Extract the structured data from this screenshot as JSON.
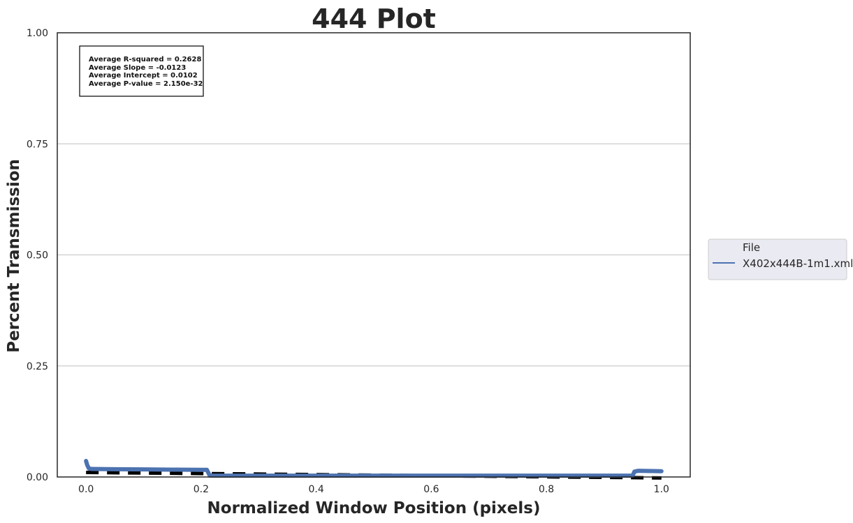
{
  "chart_data": {
    "type": "line",
    "title": "444 Plot",
    "xlabel": "Normalized Window Position (pixels)",
    "ylabel": "Percent Transmission",
    "xlim": [
      -0.05,
      1.05
    ],
    "ylim": [
      0.0,
      1.0
    ],
    "xticks": [
      0.0,
      0.2,
      0.4,
      0.6,
      0.8,
      1.0
    ],
    "xtick_labels": [
      "0.0",
      "0.2",
      "0.4",
      "0.6",
      "0.8",
      "1.0"
    ],
    "yticks": [
      0.0,
      0.25,
      0.5,
      0.75,
      1.0
    ],
    "ytick_labels": [
      "0.00",
      "0.25",
      "0.50",
      "0.75",
      "1.00"
    ],
    "grid": "horizontal",
    "legend": {
      "title": "File",
      "placement": "outside-right",
      "entries": [
        "X402x444B-1m1.xml"
      ]
    },
    "stats_box": [
      "Average R-squared = 0.2628",
      "Average Slope = -0.0123",
      "Average Intercept = 0.0102",
      "Average P-value = 2.150e-32"
    ],
    "series": [
      {
        "name": "X402x444B-1m1.xml",
        "color": "#4c72b0",
        "x": [
          0.0,
          0.002,
          0.005,
          0.01,
          0.05,
          0.1,
          0.15,
          0.2,
          0.21,
          0.215,
          0.3,
          0.4,
          0.5,
          0.6,
          0.7,
          0.8,
          0.9,
          0.95,
          0.953,
          0.96,
          1.0
        ],
        "y": [
          0.036,
          0.027,
          0.019,
          0.018,
          0.0175,
          0.017,
          0.0165,
          0.016,
          0.016,
          0.003,
          0.003,
          0.003,
          0.003,
          0.003,
          0.003,
          0.003,
          0.003,
          0.003,
          0.012,
          0.014,
          0.013
        ]
      }
    ],
    "fit_line": {
      "style": "dashed",
      "color": "#000000",
      "slope": -0.0123,
      "intercept": 0.0102
    }
  }
}
